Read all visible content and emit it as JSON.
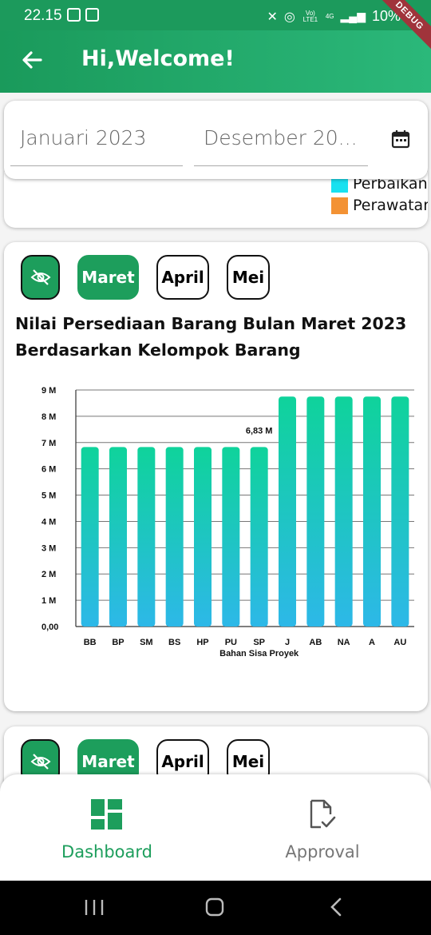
{
  "status_bar": {
    "time": "22.15",
    "battery": "10%",
    "network": "4G",
    "volte": "Vo) LTE1"
  },
  "app_bar": {
    "title": "Hi,Welcome!",
    "debug_banner": "DEBUG"
  },
  "date_filter": {
    "start": "Januari 2023",
    "end": "Desember 20..."
  },
  "legend": [
    {
      "label": "Perbaikan",
      "color": "#19e1f0"
    },
    {
      "label": "Perawatan",
      "color": "#f39234"
    }
  ],
  "month_tabs": {
    "selected": "Maret",
    "others": [
      "April",
      "Mei"
    ]
  },
  "chart_card": {
    "title": "Nilai Persediaan Barang Bulan Maret 2023 Berdasarkan Kelompok Barang"
  },
  "chart_data": {
    "type": "bar",
    "title": "Nilai Persediaan Barang Bulan Maret 2023 Berdasarkan Kelompok Barang",
    "categories": [
      "BB",
      "BP",
      "SM",
      "BS",
      "HP",
      "PU",
      "SP",
      "J",
      "AB",
      "NA",
      "A",
      "AU"
    ],
    "values": [
      6.83,
      6.83,
      6.83,
      6.83,
      6.83,
      6.83,
      6.83,
      8.75,
      8.75,
      8.75,
      8.75,
      8.75
    ],
    "unit": "M",
    "y_ticks": [
      "0,00",
      "1 M",
      "2 M",
      "3 M",
      "4 M",
      "5 M",
      "6 M",
      "7 M",
      "8 M",
      "9 M"
    ],
    "ylim": [
      0,
      9
    ],
    "annotation": {
      "category": "SP",
      "label": "6,83 M"
    },
    "x_caption": "Bahan Sisa Proyek",
    "grid": true,
    "gradient_top": "#0fd39b",
    "gradient_bottom": "#2db8e8"
  },
  "bottom_nav": {
    "items": [
      "Dashboard",
      "Approval"
    ],
    "active": "Dashboard",
    "accent": "#1d9e5c"
  }
}
